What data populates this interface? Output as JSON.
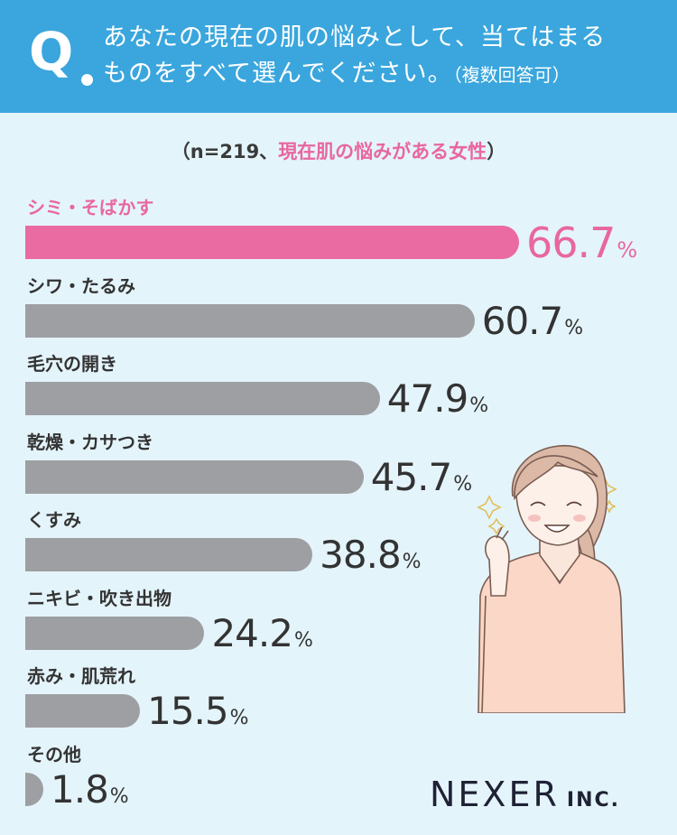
{
  "header": {
    "q_mark": "Q",
    "question_line1": "あなたの現在の肌の悩みとして、当てはまる",
    "question_line2": "ものをすべて選んでください。",
    "question_note": "（複数回答可）"
  },
  "sample": {
    "prefix": "（n=219、",
    "group": "現在肌の悩みがある女性",
    "suffix": "）"
  },
  "chart_data": {
    "type": "bar",
    "orientation": "horizontal",
    "categories": [
      "シミ・そばかす",
      "シワ・たるみ",
      "毛穴の開き",
      "乾燥・カサつき",
      "くすみ",
      "ニキビ・吹き出物",
      "赤み・肌荒れ",
      "その他"
    ],
    "values": [
      66.7,
      60.7,
      47.9,
      45.7,
      38.8,
      24.2,
      15.5,
      1.8
    ],
    "value_labels": [
      "66.7",
      "60.7",
      "47.9",
      "45.7",
      "38.8",
      "24.2",
      "15.5",
      "1.8"
    ],
    "unit": "%",
    "highlight_index": 0,
    "colors": {
      "highlight": "#ea6aa2",
      "default": "#9e9fa3",
      "highlight_text": "#e8679e"
    }
  },
  "logo": {
    "name": "NEXER",
    "suffix": "INC."
  },
  "colors": {
    "header": "#3aa6dd",
    "background": "#e4f4fb"
  }
}
